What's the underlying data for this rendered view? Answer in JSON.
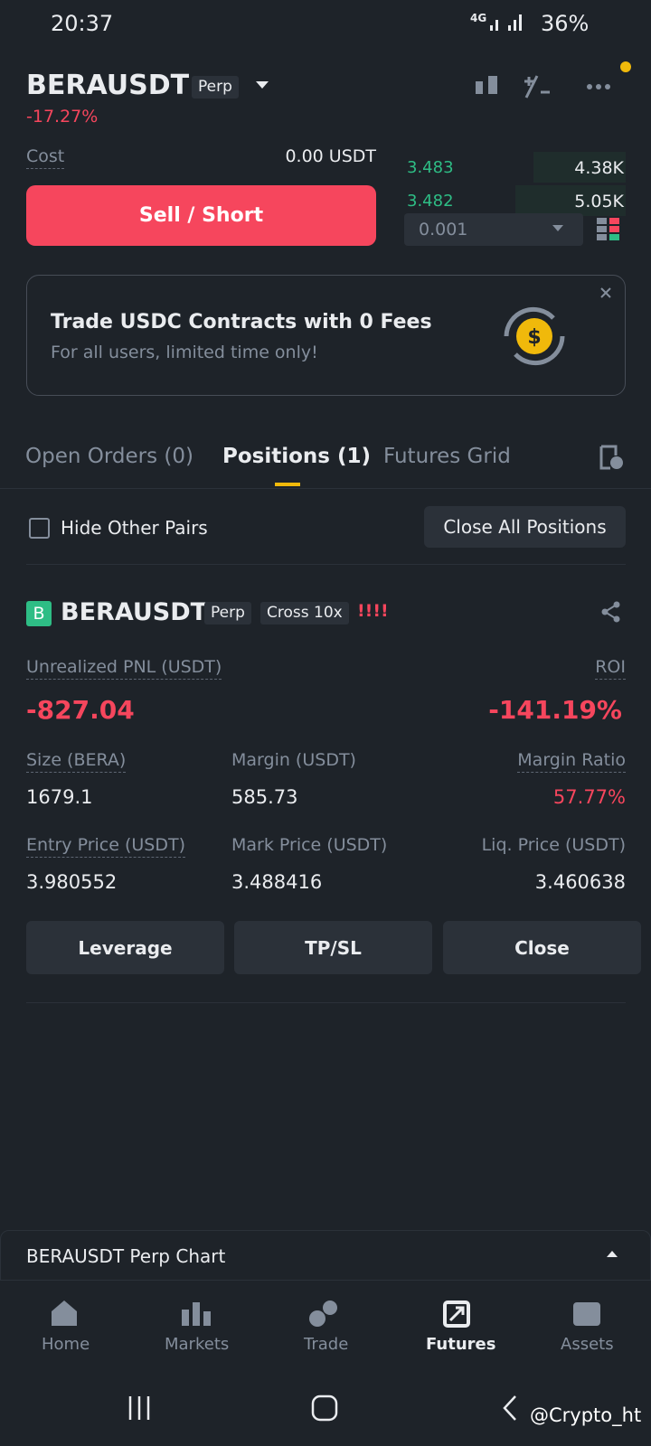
{
  "status": {
    "time": "20:37",
    "network": "4G",
    "battery": "36%"
  },
  "header": {
    "symbol": "BERAUSDT",
    "tag": "Perp",
    "change": "-17.27%"
  },
  "order": {
    "cost_label": "Cost",
    "cost_value": "0.00 USDT",
    "button": "Sell / Short"
  },
  "orderbook": {
    "rows": [
      [
        "3.483",
        "4.38K"
      ],
      [
        "3.482",
        "5.05K"
      ]
    ],
    "precision": "0.001"
  },
  "banner": {
    "title": "Trade USDC Contracts with 0 Fees",
    "subtitle": "For all users, limited time only!"
  },
  "tabs": [
    "Open Orders (0)",
    "Positions (1)",
    "Futures Grid"
  ],
  "filter": {
    "hide": "Hide Other Pairs",
    "close_all": "Close All Positions"
  },
  "position": {
    "badge": "B",
    "symbol": "BERAUSDT",
    "tags": [
      "Perp",
      "Cross 10x"
    ],
    "warning": "!!!!",
    "pnl": {
      "label": "Unrealized PNL (USDT)",
      "value": "-827.04"
    },
    "roi": {
      "label": "ROI",
      "value": "-141.19%"
    },
    "fields": [
      {
        "label": "Size (BERA)",
        "value": "1679.1"
      },
      {
        "label": "Margin (USDT)",
        "value": "585.73"
      },
      {
        "label": "Margin Ratio",
        "value": "57.77%"
      },
      {
        "label": "Entry Price (USDT)",
        "value": "3.980552"
      },
      {
        "label": "Mark Price (USDT)",
        "value": "3.488416"
      },
      {
        "label": "Liq. Price (USDT)",
        "value": "3.460638"
      }
    ]
  },
  "actions": [
    "Leverage",
    "TP/SL",
    "Close"
  ],
  "chart_bar": "BERAUSDT Perp Chart",
  "nav": [
    "Home",
    "Markets",
    "Trade",
    "Futures",
    "Assets"
  ],
  "watermark": "@Crypto_ht"
}
